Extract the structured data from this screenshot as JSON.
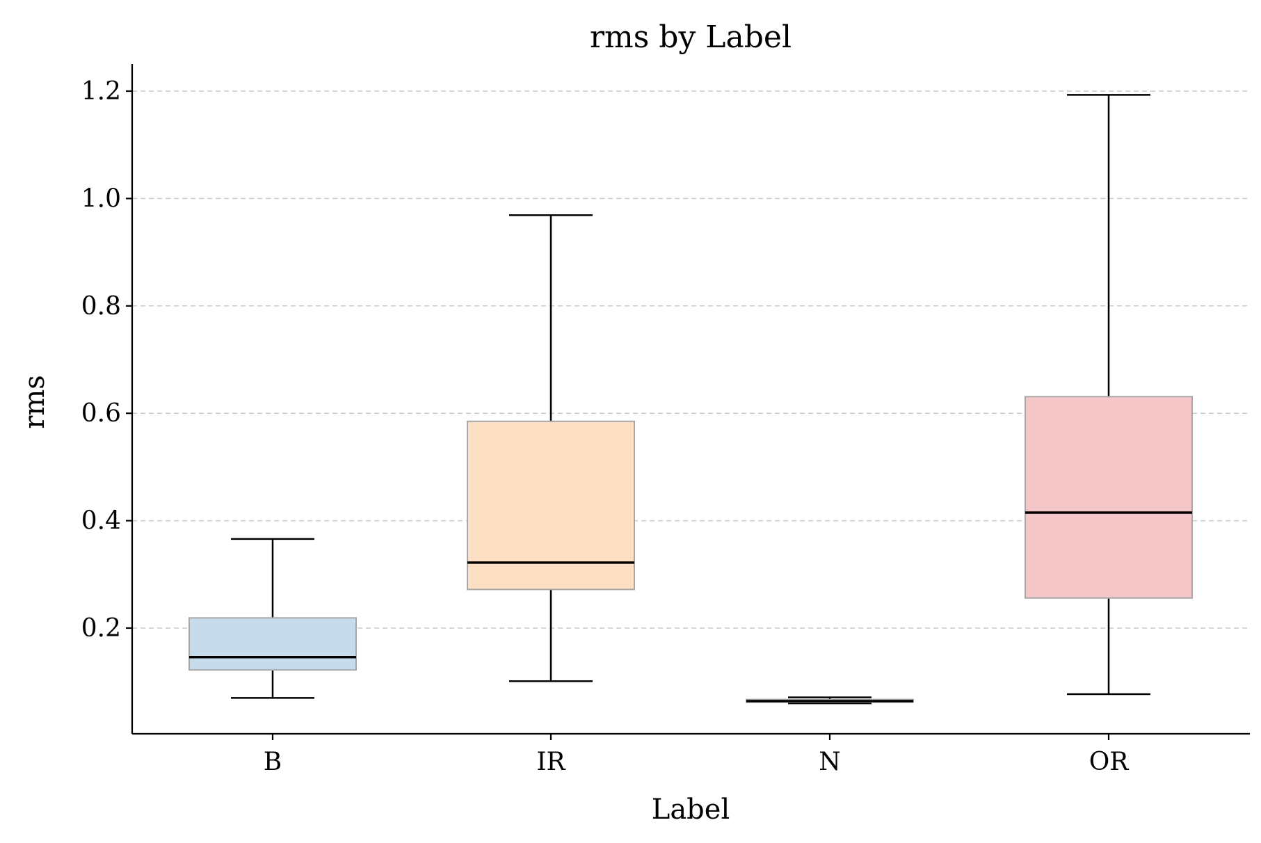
{
  "chart_data": {
    "type": "box",
    "title": "rms by Label",
    "xlabel": "Label",
    "ylabel": "rms",
    "ylim": [
      0.0,
      1.25
    ],
    "yticks": [
      0.2,
      0.4,
      0.6,
      0.8,
      1.0,
      1.2
    ],
    "ytick_labels": [
      "0.2",
      "0.4",
      "0.6",
      "0.8",
      "1.0",
      "1.2"
    ],
    "grid": "y-dashed",
    "categories": [
      "B",
      "IR",
      "N",
      "OR"
    ],
    "boxes": [
      {
        "label": "B",
        "whisker_low": 0.07,
        "q1": 0.122,
        "median": 0.146,
        "q3": 0.219,
        "whisker_high": 0.366,
        "color": "#c6dcea"
      },
      {
        "label": "IR",
        "whisker_low": 0.101,
        "q1": 0.272,
        "median": 0.322,
        "q3": 0.585,
        "whisker_high": 0.969,
        "color": "#fddfc4"
      },
      {
        "label": "N",
        "whisker_low": 0.06,
        "q1": 0.062,
        "median": 0.064,
        "q3": 0.067,
        "whisker_high": 0.071,
        "color": "#d5e8d0"
      },
      {
        "label": "OR",
        "whisker_low": 0.077,
        "q1": 0.256,
        "median": 0.415,
        "q3": 0.631,
        "whisker_high": 1.193,
        "color": "#f5c6c8"
      }
    ]
  }
}
